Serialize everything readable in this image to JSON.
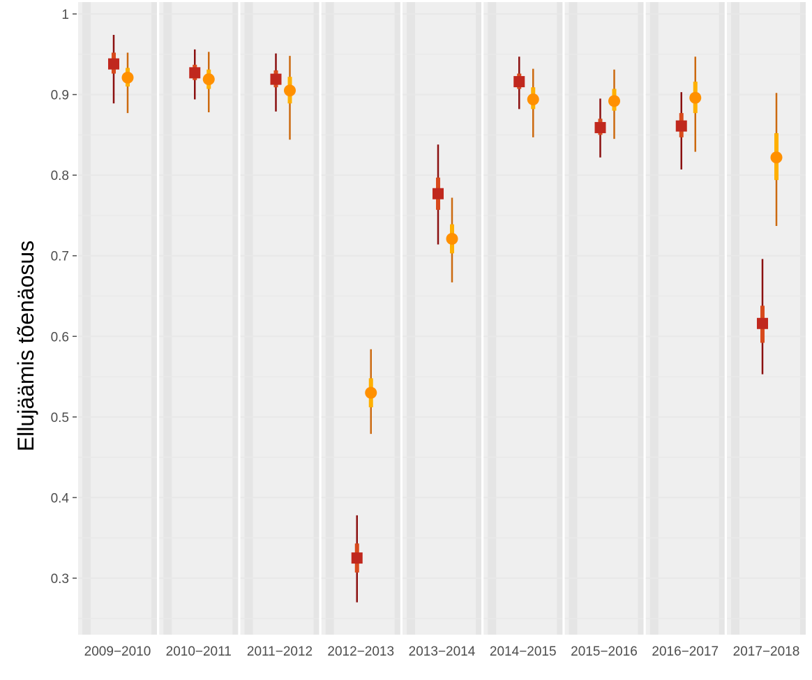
{
  "chart_data": {
    "type": "scatter",
    "subtype": "point-range with inner and outer intervals, faceted by period",
    "title": "",
    "xlabel": "",
    "ylabel": "Ellujäämis tõenäosus",
    "ylim": [
      0.23,
      1.01
    ],
    "yticks": [
      0.3,
      0.4,
      0.5,
      0.6,
      0.7,
      0.8,
      0.9,
      1
    ],
    "ytick_labels": [
      "0.3",
      "0.4",
      "0.5",
      "0.6",
      "0.7",
      "0.8",
      "0.9",
      "1"
    ],
    "grid": true,
    "legend": "none",
    "panels": [
      "2009−2010",
      "2010−2011",
      "2011−2012",
      "2012−2013",
      "2013−2014",
      "2014−2015",
      "2015−2016",
      "2016−2017",
      "2017−2018"
    ],
    "series": [
      {
        "marker": "square",
        "point_color": "#c0281e",
        "inner_color": "#d84a1c",
        "outer_color": "#8b1010",
        "values": [
          {
            "mid": 0.938,
            "inner": [
              0.926,
              0.952
            ],
            "outer": [
              0.889,
              0.974
            ]
          },
          {
            "mid": 0.927,
            "inner": [
              0.918,
              0.937
            ],
            "outer": [
              0.894,
              0.956
            ]
          },
          {
            "mid": 0.919,
            "inner": [
              0.909,
              0.93
            ],
            "outer": [
              0.879,
              0.951
            ]
          },
          {
            "mid": 0.325,
            "inner": [
              0.307,
              0.343
            ],
            "outer": [
              0.27,
              0.378
            ]
          },
          {
            "mid": 0.777,
            "inner": [
              0.757,
              0.797
            ],
            "outer": [
              0.714,
              0.838
            ]
          },
          {
            "mid": 0.916,
            "inner": [
              0.907,
              0.926
            ],
            "outer": [
              0.882,
              0.947
            ]
          },
          {
            "mid": 0.859,
            "inner": [
              0.85,
              0.87
            ],
            "outer": [
              0.822,
              0.895
            ]
          },
          {
            "mid": 0.861,
            "inner": [
              0.847,
              0.877
            ],
            "outer": [
              0.807,
              0.903
            ]
          },
          {
            "mid": 0.616,
            "inner": [
              0.592,
              0.638
            ],
            "outer": [
              0.553,
              0.696
            ]
          }
        ]
      },
      {
        "marker": "circle",
        "point_color": "#ff9000",
        "inner_color": "#ffb000",
        "outer_color": "#cc6a10",
        "values": [
          {
            "mid": 0.921,
            "inner": [
              0.91,
              0.933
            ],
            "outer": [
              0.877,
              0.952
            ]
          },
          {
            "mid": 0.919,
            "inner": [
              0.907,
              0.931
            ],
            "outer": [
              0.878,
              0.953
            ]
          },
          {
            "mid": 0.905,
            "inner": [
              0.889,
              0.922
            ],
            "outer": [
              0.844,
              0.948
            ]
          },
          {
            "mid": 0.53,
            "inner": [
              0.512,
              0.548
            ],
            "outer": [
              0.479,
              0.584
            ]
          },
          {
            "mid": 0.721,
            "inner": [
              0.703,
              0.739
            ],
            "outer": [
              0.667,
              0.772
            ]
          },
          {
            "mid": 0.894,
            "inner": [
              0.882,
              0.909
            ],
            "outer": [
              0.847,
              0.932
            ]
          },
          {
            "mid": 0.892,
            "inner": [
              0.88,
              0.907
            ],
            "outer": [
              0.845,
              0.931
            ]
          },
          {
            "mid": 0.896,
            "inner": [
              0.877,
              0.916
            ],
            "outer": [
              0.829,
              0.947
            ]
          },
          {
            "mid": 0.822,
            "inner": [
              0.794,
              0.852
            ],
            "outer": [
              0.737,
              0.902
            ]
          }
        ]
      }
    ]
  }
}
